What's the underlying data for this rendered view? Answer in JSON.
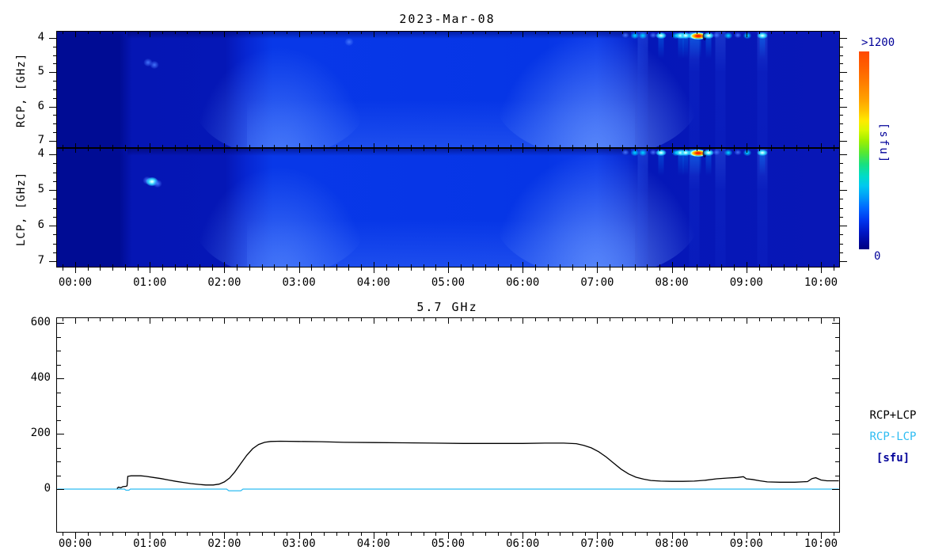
{
  "titles": {
    "date": "2023-Mar-08",
    "freq": "5.7 GHz"
  },
  "time_axis": {
    "labels": [
      "00:00",
      "01:00",
      "02:00",
      "03:00",
      "04:00",
      "05:00",
      "06:00",
      "07:00",
      "08:00",
      "09:00",
      "10:00"
    ],
    "t_start_hours": -0.244,
    "t_end_hours": 10.244
  },
  "spectrogram": {
    "rcp_label": "RCP, [GHz]",
    "lcp_label": "LCP, [GHz]",
    "freq_tick_labels": [
      "4",
      "5",
      "6",
      "7"
    ]
  },
  "colorbar": {
    "max_label": ">1200",
    "min_label": "0",
    "unit_label": "[sfu]"
  },
  "timeseries": {
    "y_tick_labels": [
      "0",
      "200",
      "400",
      "600"
    ],
    "legend": [
      {
        "label": "RCP+LCP",
        "color": "#000000",
        "bold": false
      },
      {
        "label": "RCP-LCP",
        "color": "#2ebcf2",
        "bold": false
      },
      {
        "label": "[sfu]",
        "color": "#000099",
        "bold": true
      }
    ]
  },
  "colors": {
    "frame": "#000000",
    "navy_text": "#000099",
    "cyan_line": "#2ebcf2"
  },
  "chart_data": [
    {
      "type": "heatmap",
      "title": "2023-Mar-08",
      "panels": [
        "RCP",
        "LCP"
      ],
      "x_ticks": [
        "00:00",
        "01:00",
        "02:00",
        "03:00",
        "04:00",
        "05:00",
        "06:00",
        "07:00",
        "08:00",
        "09:00",
        "10:00"
      ],
      "x_range_hours": [
        -0.244,
        10.244
      ],
      "ylabel_rcp": "RCP, [GHz]",
      "ylabel_lcp": "LCP, [GHz]",
      "y_ticks_ghz": [
        4,
        5,
        6,
        7
      ],
      "y_range_ghz": [
        3.85,
        7.15
      ],
      "colorbar": {
        "min": 0,
        "max": 1200,
        "unit": "sfu",
        "min_label": "0",
        "max_label": ">1200"
      },
      "features": {
        "no_data_before_hour": 0.63,
        "weak_background_interval_hours": [
          0.63,
          2.1
        ],
        "enhanced_emission_interval_hours": [
          2.2,
          7.45
        ],
        "bright_low_freq_edges_hours": [
          2.75,
          7.0
        ],
        "bursts_4ghz": [
          {
            "t": 7.38,
            "i": 1
          },
          {
            "t": 7.5,
            "i": 2
          },
          {
            "t": 7.61,
            "i": 2
          },
          {
            "t": 7.75,
            "i": 1
          },
          {
            "t": 7.86,
            "i": 3
          },
          {
            "t": 8.06,
            "i": 2
          },
          {
            "t": 8.12,
            "i": 3
          },
          {
            "t": 8.19,
            "i": 3
          },
          {
            "t": 8.28,
            "i": 3
          },
          {
            "t": 8.35,
            "i": 4
          },
          {
            "t": 8.44,
            "i": 0
          },
          {
            "t": 8.49,
            "i": 3
          },
          {
            "t": 8.6,
            "i": 1
          },
          {
            "t": 8.76,
            "i": 2
          },
          {
            "t": 8.89,
            "i": 1
          },
          {
            "t": 9.01,
            "i": 2
          },
          {
            "t": 9.21,
            "i": 3
          }
        ],
        "spots": [
          {
            "panel": "rcp",
            "t": 0.98,
            "f": 4.7,
            "i": 1
          },
          {
            "panel": "rcp",
            "t": 1.06,
            "f": 4.76,
            "i": 1
          },
          {
            "panel": "rcp",
            "t": 3.67,
            "f": 4.1,
            "i": 1
          },
          {
            "panel": "lcp",
            "t": 0.97,
            "f": 4.7,
            "i": 1
          },
          {
            "panel": "lcp",
            "t": 1.03,
            "f": 4.73,
            "i": 3
          },
          {
            "panel": "lcp",
            "t": 1.1,
            "f": 4.79,
            "i": 1
          }
        ],
        "faint_streaks_hours": [
          7.61,
          8.3,
          8.65,
          9.21
        ]
      }
    },
    {
      "type": "line",
      "title": "5.7 GHz",
      "x_ticks": [
        "00:00",
        "01:00",
        "02:00",
        "03:00",
        "04:00",
        "05:00",
        "06:00",
        "07:00",
        "08:00",
        "09:00",
        "10:00"
      ],
      "ylim": [
        -150,
        620
      ],
      "y_ticks": [
        0,
        200,
        400,
        600
      ],
      "unit": "sfu",
      "legend_position": "right-outside",
      "series": [
        {
          "name": "RCP+LCP",
          "color": "#000000",
          "points": [
            [
              0.56,
              2
            ],
            [
              0.58,
              7
            ],
            [
              0.61,
              5
            ],
            [
              0.64,
              9
            ],
            [
              0.68,
              10
            ],
            [
              0.695,
              12
            ],
            [
              0.705,
              46
            ],
            [
              0.75,
              48
            ],
            [
              0.88,
              48
            ],
            [
              0.95,
              46
            ],
            [
              1.05,
              42
            ],
            [
              1.15,
              38
            ],
            [
              1.25,
              33
            ],
            [
              1.35,
              28
            ],
            [
              1.45,
              24
            ],
            [
              1.55,
              20
            ],
            [
              1.65,
              17
            ],
            [
              1.75,
              15
            ],
            [
              1.85,
              15
            ],
            [
              1.93,
              18
            ],
            [
              2.0,
              26
            ],
            [
              2.07,
              40
            ],
            [
              2.14,
              62
            ],
            [
              2.22,
              92
            ],
            [
              2.3,
              122
            ],
            [
              2.38,
              146
            ],
            [
              2.46,
              161
            ],
            [
              2.54,
              169
            ],
            [
              2.62,
              172
            ],
            [
              2.75,
              173
            ],
            [
              3.0,
              172
            ],
            [
              3.3,
              171
            ],
            [
              3.6,
              169
            ],
            [
              4.0,
              168
            ],
            [
              4.4,
              167
            ],
            [
              4.8,
              166
            ],
            [
              5.2,
              165
            ],
            [
              5.6,
              165
            ],
            [
              6.0,
              165
            ],
            [
              6.3,
              166
            ],
            [
              6.55,
              166
            ],
            [
              6.72,
              164
            ],
            [
              6.82,
              158
            ],
            [
              6.92,
              149
            ],
            [
              7.02,
              135
            ],
            [
              7.12,
              116
            ],
            [
              7.22,
              94
            ],
            [
              7.32,
              72
            ],
            [
              7.42,
              55
            ],
            [
              7.52,
              43
            ],
            [
              7.62,
              36
            ],
            [
              7.72,
              31
            ],
            [
              7.85,
              29
            ],
            [
              8.0,
              28
            ],
            [
              8.15,
              28
            ],
            [
              8.3,
              29
            ],
            [
              8.45,
              32
            ],
            [
              8.6,
              37
            ],
            [
              8.75,
              40
            ],
            [
              8.88,
              42
            ],
            [
              8.96,
              45
            ],
            [
              9.0,
              37
            ],
            [
              9.08,
              35
            ],
            [
              9.18,
              30
            ],
            [
              9.28,
              26
            ],
            [
              9.45,
              25
            ],
            [
              9.65,
              25
            ],
            [
              9.82,
              27
            ],
            [
              9.88,
              38
            ],
            [
              9.93,
              41
            ],
            [
              10.0,
              33
            ],
            [
              10.08,
              30
            ],
            [
              10.24,
              30
            ]
          ]
        },
        {
          "name": "RCP-LCP",
          "color": "#2ebcf2",
          "points": [
            [
              -0.24,
              0
            ],
            [
              0.66,
              0
            ],
            [
              0.68,
              -4
            ],
            [
              0.72,
              -4
            ],
            [
              0.74,
              0
            ],
            [
              2.03,
              0
            ],
            [
              2.06,
              -6
            ],
            [
              2.22,
              -6
            ],
            [
              2.25,
              0
            ],
            [
              10.24,
              0
            ]
          ]
        }
      ]
    }
  ]
}
